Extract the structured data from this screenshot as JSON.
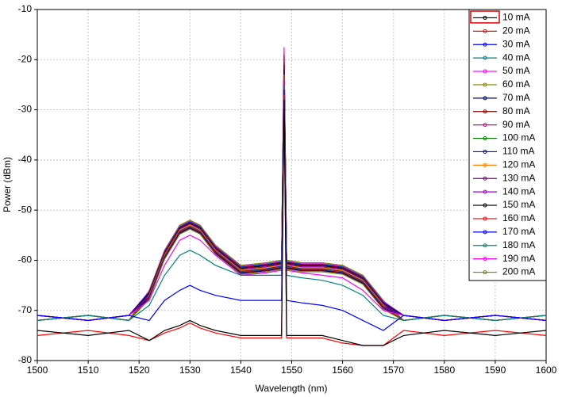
{
  "chart_data": {
    "type": "line",
    "x_label": "Wavelength (nm)",
    "y_label": "Power (dBm)",
    "xlim": [
      1500,
      1600
    ],
    "ylim": [
      -80,
      -10
    ],
    "xticks": [
      1500,
      1510,
      1520,
      1530,
      1540,
      1550,
      1560,
      1570,
      1580,
      1590,
      1600
    ],
    "yticks": [
      -80,
      -70,
      -60,
      -50,
      -40,
      -30,
      -20,
      -10
    ],
    "grid": true,
    "legend": "upper right",
    "x": [
      1500,
      1510,
      1518,
      1522,
      1525,
      1528,
      1530,
      1532,
      1535,
      1540,
      1545,
      1548,
      1548.5,
      1549,
      1552,
      1556,
      1560,
      1564,
      1568,
      1572,
      1580,
      1590,
      1600
    ],
    "series": [
      {
        "name": "10 mA",
        "color": "#000000",
        "values": [
          -74,
          -75,
          -74,
          -76,
          -74,
          -73,
          -72,
          -73,
          -74,
          -75,
          -75,
          -75,
          -28,
          -75,
          -75,
          -75,
          -76,
          -77,
          -77,
          -75,
          -74,
          -75,
          -74
        ]
      },
      {
        "name": "20 mA",
        "color": "#ff0000",
        "values": [
          -75,
          -74,
          -75,
          -76,
          -74.5,
          -73.5,
          -72.5,
          -73.5,
          -74.5,
          -75.5,
          -75.5,
          -75.5,
          -27,
          -75.5,
          -75.5,
          -75.5,
          -76.5,
          -77,
          -77,
          -74,
          -75,
          -74,
          -75
        ]
      },
      {
        "name": "30 mA",
        "color": "#0000ff",
        "values": [
          -71,
          -72,
          -71,
          -72,
          -68,
          -66,
          -65,
          -66,
          -67,
          -68,
          -68,
          -68,
          -26,
          -68,
          -68.5,
          -69,
          -70,
          -72,
          -74,
          -71,
          -72,
          -71,
          -72
        ]
      },
      {
        "name": "40 mA",
        "color": "#008080",
        "values": [
          -72,
          -71,
          -72,
          -69,
          -63,
          -59,
          -58,
          -59,
          -61,
          -63,
          -63,
          -63,
          -25,
          -63,
          -63.5,
          -64,
          -65,
          -67,
          -71,
          -72,
          -71,
          -72,
          -71
        ]
      },
      {
        "name": "50 mA",
        "color": "#ff00ff",
        "values": [
          -71,
          -72,
          -71,
          -68,
          -61,
          -56,
          -55,
          -56,
          -59,
          -63,
          -62.5,
          -62,
          -24,
          -62,
          -62.5,
          -63,
          -63.5,
          -66,
          -70,
          -71,
          -72,
          -71,
          -72
        ]
      },
      {
        "name": "60 mA",
        "color": "#808000",
        "values": [
          -72,
          -71,
          -72,
          -67.8,
          -59.8,
          -54.8,
          -53.8,
          -54.8,
          -58.8,
          -62.8,
          -62.3,
          -61.8,
          -23,
          -61.8,
          -62.3,
          -62.3,
          -62.8,
          -64.8,
          -69.8,
          -72,
          -71,
          -72,
          -71
        ]
      },
      {
        "name": "70 mA",
        "color": "#000080",
        "values": [
          -71,
          -72,
          -71,
          -67.6,
          -59.6,
          -54.6,
          -53.6,
          -54.6,
          -58.6,
          -62.6,
          -62.1,
          -61.6,
          -22,
          -61.6,
          -62.1,
          -62.1,
          -62.6,
          -64.6,
          -69.6,
          -71,
          -72,
          -71,
          -72
        ]
      },
      {
        "name": "80 mA",
        "color": "#800000",
        "values": [
          -72,
          -71,
          -72,
          -67.5,
          -59.5,
          -54.5,
          -53.5,
          -54.5,
          -58.5,
          -62.5,
          -62,
          -61.5,
          -21,
          -61.5,
          -62,
          -62,
          -62.5,
          -64.5,
          -69.5,
          -72,
          -71,
          -72,
          -71
        ]
      },
      {
        "name": "90 mA",
        "color": "#e0007f",
        "values": [
          -71,
          -72,
          -71,
          -67.4,
          -59.4,
          -54.4,
          -53.4,
          -54.4,
          -58.4,
          -62.4,
          -61.9,
          -61.4,
          -20,
          -61.4,
          -61.9,
          -61.9,
          -62.4,
          -64.4,
          -69.4,
          -71,
          -72,
          -71,
          -72
        ]
      },
      {
        "name": "100 mA",
        "color": "#008000",
        "values": [
          -72,
          -71,
          -72,
          -67.3,
          -59.3,
          -54.3,
          -53.3,
          -54.3,
          -58.3,
          -62.3,
          -61.8,
          -61.3,
          -22,
          -61.3,
          -61.8,
          -61.8,
          -62.3,
          -64.3,
          -69.3,
          -72,
          -71,
          -72,
          -71
        ]
      },
      {
        "name": "110 mA",
        "color": "#1010a0",
        "values": [
          -71,
          -72,
          -71,
          -67.2,
          -59.2,
          -54.2,
          -53.2,
          -54.2,
          -58.2,
          -62.2,
          -61.7,
          -61.2,
          -21,
          -61.2,
          -61.7,
          -61.7,
          -62.2,
          -64.2,
          -69.2,
          -71,
          -72,
          -71,
          -72
        ]
      },
      {
        "name": "120 mA",
        "color": "#ff8000",
        "values": [
          -72,
          -71,
          -72,
          -67,
          -59,
          -54,
          -53,
          -54,
          -58,
          -62,
          -61.5,
          -61,
          -20,
          -61,
          -61.5,
          -61.5,
          -62,
          -64,
          -69,
          -72,
          -71,
          -72,
          -71
        ]
      },
      {
        "name": "130 mA",
        "color": "#800080",
        "values": [
          -71,
          -72,
          -71,
          -66.9,
          -58.9,
          -53.9,
          -52.9,
          -53.9,
          -57.9,
          -61.9,
          -61.4,
          -60.9,
          -22,
          -60.9,
          -61.4,
          -61.4,
          -61.9,
          -63.9,
          -68.9,
          -71,
          -72,
          -71,
          -72
        ]
      },
      {
        "name": "140 mA",
        "color": "#a000c0",
        "values": [
          -72,
          -71,
          -72,
          -66.8,
          -58.8,
          -53.8,
          -52.8,
          -53.8,
          -57.8,
          -61.8,
          -61.3,
          -60.8,
          -21,
          -60.8,
          -61.3,
          -61.3,
          -61.8,
          -63.8,
          -68.8,
          -72,
          -71,
          -72,
          -71
        ]
      },
      {
        "name": "150 mA",
        "color": "#000000",
        "values": [
          -71,
          -72,
          -71,
          -66.6,
          -58.6,
          -53.6,
          -52.6,
          -53.6,
          -57.6,
          -61.6,
          -61.1,
          -60.6,
          -20,
          -60.6,
          -61.1,
          -61.1,
          -61.6,
          -63.6,
          -68.6,
          -71,
          -72,
          -71,
          -72
        ]
      },
      {
        "name": "160 mA",
        "color": "#ff0000",
        "values": [
          -72,
          -71,
          -72,
          -66.5,
          -58.5,
          -53.5,
          -52.5,
          -53.5,
          -57.5,
          -61.5,
          -61,
          -60.5,
          -19,
          -60.5,
          -61,
          -61,
          -61.5,
          -63.5,
          -68.5,
          -72,
          -71,
          -72,
          -71
        ]
      },
      {
        "name": "170 mA",
        "color": "#0000ff",
        "values": [
          -71,
          -72,
          -71,
          -66.4,
          -58.4,
          -53.4,
          -52.4,
          -53.4,
          -57.4,
          -61.4,
          -60.9,
          -60.4,
          -20,
          -60.4,
          -60.9,
          -60.9,
          -61.4,
          -63.4,
          -68.4,
          -71,
          -72,
          -71,
          -72
        ]
      },
      {
        "name": "180 mA",
        "color": "#008080",
        "values": [
          -72,
          -71,
          -72,
          -66.3,
          -58.3,
          -53.3,
          -52.3,
          -53.3,
          -57.3,
          -61.3,
          -60.8,
          -60.3,
          -19,
          -60.3,
          -60.8,
          -60.8,
          -61.3,
          -63.3,
          -68.3,
          -72,
          -71,
          -72,
          -71
        ]
      },
      {
        "name": "190 mA",
        "color": "#ff00ff",
        "values": [
          -71,
          -72,
          -71,
          -66.2,
          -58.2,
          -53.2,
          -52.2,
          -53.2,
          -57.2,
          -61.2,
          -60.7,
          -60.2,
          -17.5,
          -60.2,
          -60.7,
          -60.7,
          -61.2,
          -63.2,
          -68.2,
          -71,
          -72,
          -71,
          -72
        ]
      },
      {
        "name": "200 mA",
        "color": "#808000",
        "values": [
          -72,
          -71,
          -72,
          -66,
          -58,
          -53,
          -52,
          -53,
          -57,
          -61,
          -60.5,
          -60,
          -19,
          -60,
          -60.5,
          -60.5,
          -61,
          -63,
          -68,
          -72,
          -71,
          -72,
          -71
        ]
      }
    ]
  }
}
